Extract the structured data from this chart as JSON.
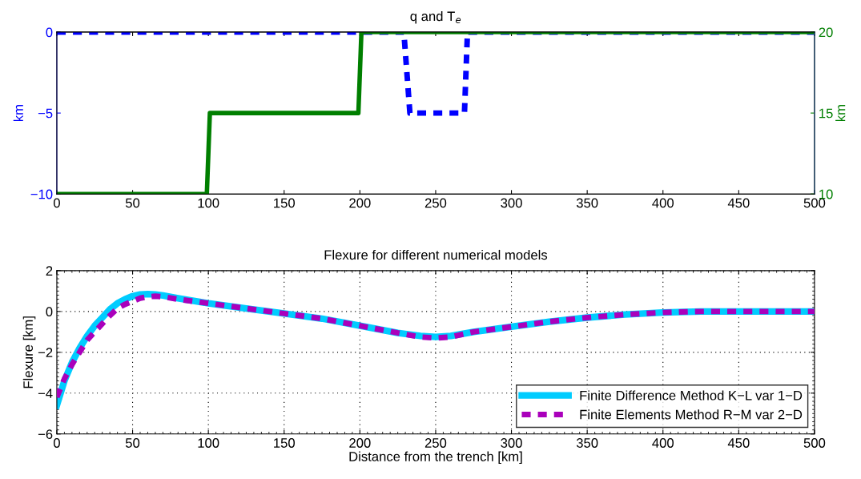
{
  "chart_data": [
    {
      "type": "line",
      "title": "q and T$_{e}$",
      "ylabel": "km",
      "y2label": "km",
      "xlim": [
        0,
        500
      ],
      "xticks": [
        0,
        50,
        100,
        150,
        200,
        250,
        300,
        350,
        400,
        450,
        500
      ],
      "ylim": [
        -10,
        0
      ],
      "yticks": [
        -10,
        -5,
        0
      ],
      "y2lim": [
        10,
        20
      ],
      "y2ticks": [
        10,
        15,
        20
      ],
      "series": [
        {
          "color": "#0000ff",
          "line_style": "dashed",
          "axis": "y",
          "x": [
            0,
            229,
            233,
            269,
            271,
            500
          ],
          "values": [
            0,
            0,
            -5,
            -5,
            0,
            0
          ]
        },
        {
          "color": "#007f00",
          "line_style": "solid",
          "axis": "y2",
          "x": [
            0,
            99,
            101,
            199,
            201,
            500
          ],
          "values": [
            10,
            10,
            15,
            15,
            20,
            20
          ]
        }
      ]
    },
    {
      "type": "line",
      "title": "Flexure for different numerical models",
      "xlabel": "Distance from the trench [km]",
      "ylabel": "Flexure [km]",
      "xlim": [
        0,
        500
      ],
      "xticks": [
        0,
        50,
        100,
        150,
        200,
        250,
        300,
        350,
        400,
        450,
        500
      ],
      "ylim": [
        -6,
        2
      ],
      "yticks": [
        -6,
        -4,
        -2,
        0,
        2
      ],
      "grid": true,
      "legend": "bottom right",
      "series": [
        {
          "name": "Finite Difference Method K−L var 1−D",
          "color": "#00ccff",
          "line_style": "solid",
          "x": [
            0,
            5,
            10,
            15,
            20,
            25,
            30,
            35,
            40,
            45,
            50,
            55,
            60,
            65,
            70,
            80,
            100,
            125,
            150,
            175,
            200,
            225,
            240,
            250,
            260,
            275,
            300,
            325,
            350,
            375,
            400,
            425,
            450,
            475,
            500
          ],
          "values": [
            -4.6,
            -3.4,
            -2.5,
            -1.8,
            -1.2,
            -0.7,
            -0.3,
            0.1,
            0.4,
            0.6,
            0.75,
            0.83,
            0.85,
            0.83,
            0.78,
            0.65,
            0.4,
            0.15,
            -0.1,
            -0.35,
            -0.7,
            -1.05,
            -1.2,
            -1.25,
            -1.2,
            -1.0,
            -0.75,
            -0.5,
            -0.3,
            -0.15,
            -0.05,
            0.0,
            0.0,
            0.0,
            0.0
          ]
        },
        {
          "name": "Finite Elements Method R−M var 2−D",
          "color": "#aa00bb",
          "line_style": "dashed",
          "x": [
            0,
            5,
            10,
            15,
            20,
            25,
            30,
            35,
            40,
            45,
            50,
            55,
            60,
            65,
            70,
            80,
            100,
            125,
            150,
            175,
            200,
            225,
            240,
            250,
            260,
            275,
            300,
            325,
            350,
            375,
            400,
            425,
            450,
            475,
            500
          ],
          "values": [
            -4.2,
            -3.3,
            -2.6,
            -2.0,
            -1.4,
            -1.0,
            -0.6,
            -0.2,
            0.15,
            0.35,
            0.5,
            0.65,
            0.72,
            0.75,
            0.72,
            0.6,
            0.4,
            0.15,
            -0.1,
            -0.35,
            -0.7,
            -1.05,
            -1.25,
            -1.3,
            -1.25,
            -1.0,
            -0.75,
            -0.5,
            -0.3,
            -0.15,
            -0.05,
            0.0,
            0.0,
            0.0,
            0.0
          ]
        }
      ]
    }
  ]
}
